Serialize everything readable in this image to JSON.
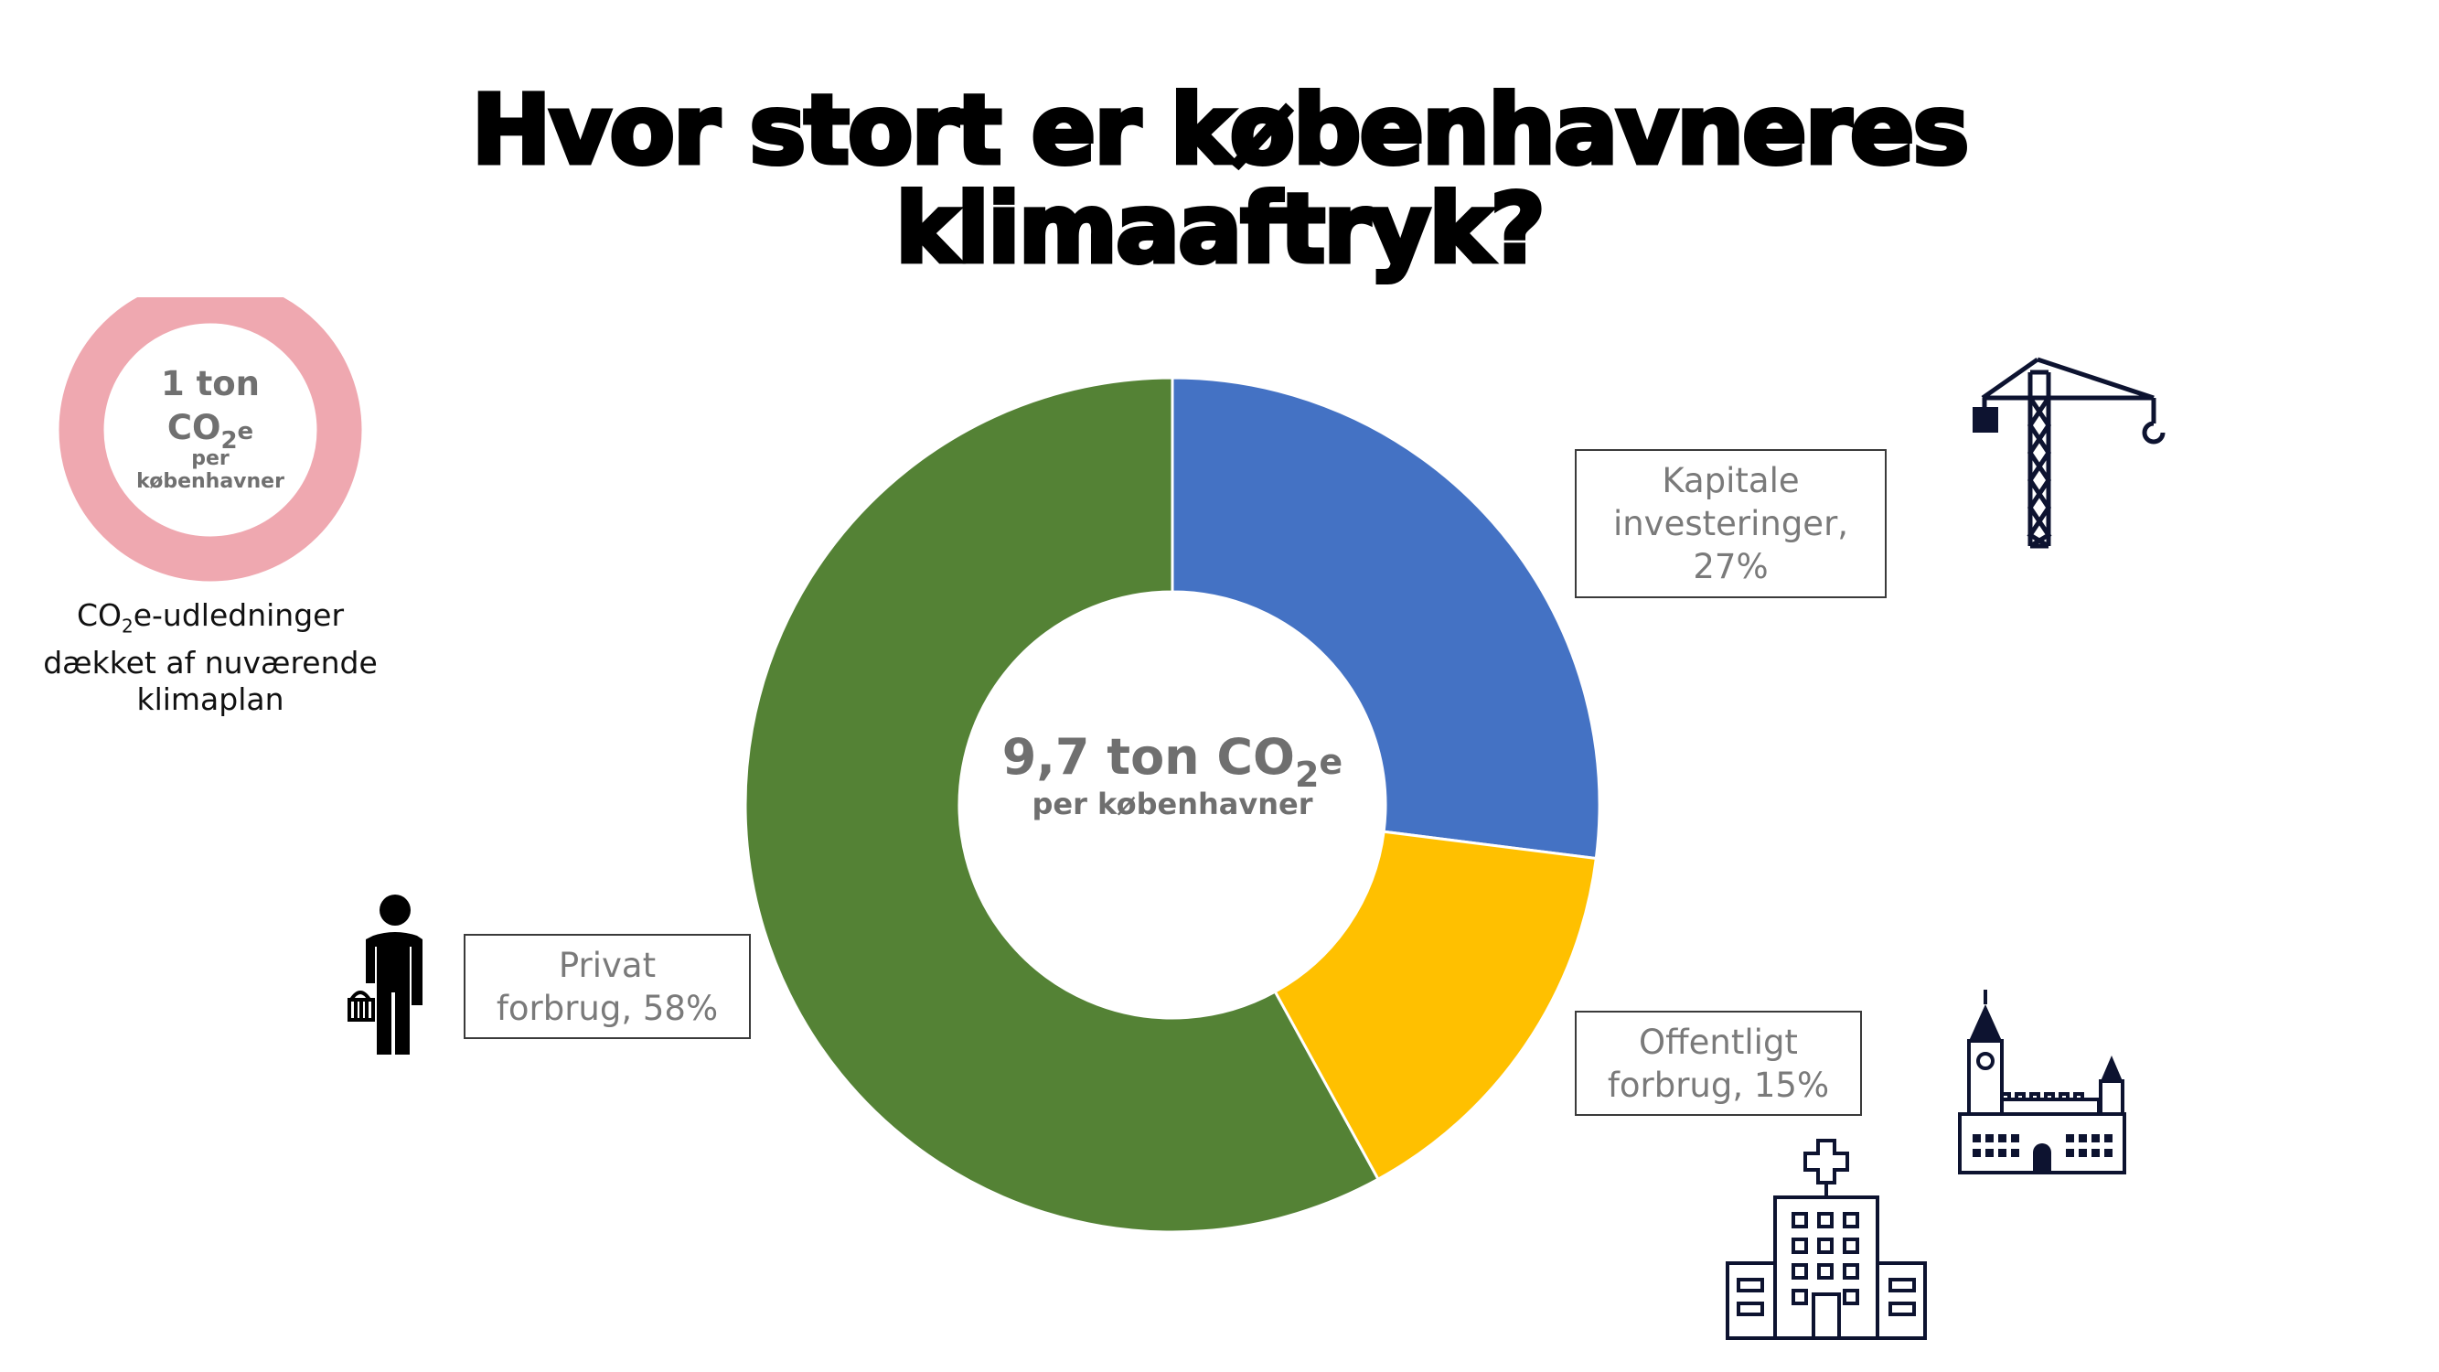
{
  "title": {
    "line1": "Hvor stort er københavneres",
    "line2": "klimaaftryk?"
  },
  "chart_data": {
    "type": "pie",
    "donut": true,
    "series": [
      {
        "name": "Kapitale investeringer",
        "label_lines": [
          "Kapitale",
          "investeringer,",
          "27%"
        ],
        "value": 27,
        "color": "#4472C4"
      },
      {
        "name": "Offentligt forbrug",
        "label_lines": [
          "Offentligt",
          "forbrug, 15%"
        ],
        "value": 15,
        "color": "#FFC000"
      },
      {
        "name": "Privat forbrug",
        "label_lines": [
          "Privat",
          "forbrug, 58%"
        ],
        "value": 58,
        "color": "#548235"
      }
    ],
    "center": {
      "value_text": "9,7 ton CO",
      "subscript": "2",
      "suffix": "e",
      "sub_text": "per københavner"
    }
  },
  "ring": {
    "color": "#EFA8B0",
    "line1": "1 ton",
    "line2": "CO",
    "line2_sub": "2",
    "line2_suffix": "e",
    "line3": "per",
    "line4": "københavner",
    "caption_line1_pre": "CO",
    "caption_line1_sub": "2",
    "caption_line1_post": "e-udledninger",
    "caption_line2": "dækket af nuværende",
    "caption_line3": "klimaplan"
  },
  "icons": [
    "crane-icon",
    "person-with-basket-icon",
    "hospital-icon",
    "town-hall-icon"
  ]
}
